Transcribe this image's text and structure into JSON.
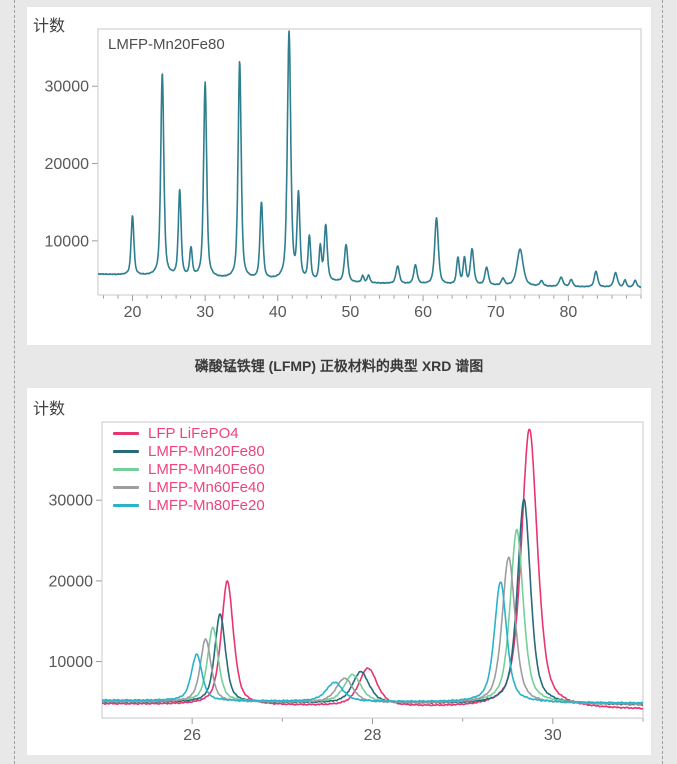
{
  "page": {
    "bg": "#e8e8e8",
    "panel_bg": "#ffffff",
    "marquee_color": "#9f9f9f",
    "frame_color": "#c8c8c8",
    "tick_color": "#9c9c9c",
    "tick_label_color": "#585858"
  },
  "caption": "磷酸锰铁锂 (LFMP) 正极材料的典型 XRD 谱图",
  "chart_data": [
    {
      "id": "full-pattern",
      "type": "line",
      "ylabel": "计数",
      "annotation": "LMFP-Mn20Fe80",
      "xlim": [
        15.25,
        90
      ],
      "ylim": [
        3000,
        37400
      ],
      "xticks_major": [
        20,
        30,
        40,
        50,
        60,
        70,
        80
      ],
      "xtick_minor_step": 2,
      "yticks": [
        10000,
        20000,
        30000
      ],
      "noise": 55,
      "series": [
        {
          "name": "LMFP-Mn20Fe80",
          "color": "#2f7e90",
          "baseline": [
            [
              15,
              5700
            ],
            [
              30,
              5150
            ],
            [
              45,
              4700
            ],
            [
              60,
              4350
            ],
            [
              75,
              4100
            ],
            [
              90,
              3950
            ]
          ],
          "peaks": [
            [
              20.0,
              13200,
              0.45
            ],
            [
              24.1,
              31600,
              0.5
            ],
            [
              26.5,
              16300,
              0.45
            ],
            [
              28.05,
              8800,
              0.42
            ],
            [
              30.0,
              30400,
              0.5
            ],
            [
              34.75,
              33100,
              0.5
            ],
            [
              37.75,
              14800,
              0.48
            ],
            [
              41.55,
              36900,
              0.55
            ],
            [
              42.85,
              15600,
              0.45
            ],
            [
              44.35,
              10300,
              0.42
            ],
            [
              45.85,
              9000,
              0.4
            ],
            [
              46.6,
              11800,
              0.5
            ],
            [
              49.4,
              9400,
              0.55
            ],
            [
              51.7,
              5400,
              0.4
            ],
            [
              52.5,
              5500,
              0.4
            ],
            [
              56.5,
              6700,
              0.55
            ],
            [
              58.95,
              6800,
              0.55
            ],
            [
              61.85,
              12900,
              0.6
            ],
            [
              64.8,
              7700,
              0.45
            ],
            [
              65.7,
              7600,
              0.45
            ],
            [
              66.75,
              8800,
              0.55
            ],
            [
              68.75,
              6500,
              0.55
            ],
            [
              71.0,
              5050,
              0.5
            ],
            [
              73.35,
              8900,
              1.0
            ],
            [
              76.3,
              4750,
              0.55
            ],
            [
              79.0,
              5250,
              0.6
            ],
            [
              80.4,
              4950,
              0.5
            ],
            [
              83.8,
              6050,
              0.55
            ],
            [
              86.5,
              5850,
              0.6
            ],
            [
              87.8,
              4900,
              0.4
            ],
            [
              89.2,
              4850,
              0.5
            ]
          ]
        }
      ]
    },
    {
      "id": "zoom-comparison",
      "type": "line",
      "ylabel": "计数",
      "xlim": [
        25,
        31
      ],
      "ylim": [
        3000,
        39700
      ],
      "xticks_major": [
        26,
        28,
        30
      ],
      "xticks_minor": [
        27,
        29,
        31
      ],
      "yticks": [
        10000,
        20000,
        30000
      ],
      "noise": 85,
      "legend_text_color": "#f0437e",
      "series": [
        {
          "name": "LFP LiFePO4",
          "color": "#e8356f",
          "baseline": [
            [
              25,
              4750
            ],
            [
              31,
              4050
            ]
          ],
          "peaks": [
            [
              26.39,
              19900,
              0.16
            ],
            [
              27.95,
              9100,
              0.24
            ],
            [
              29.74,
              38800,
              0.21
            ]
          ]
        },
        {
          "name": "LMFP-Mn20Fe80",
          "color": "#266b7c",
          "baseline": [
            [
              25,
              5000
            ],
            [
              31,
              4600
            ]
          ],
          "peaks": [
            [
              26.31,
              15900,
              0.14
            ],
            [
              27.87,
              8700,
              0.22
            ],
            [
              29.68,
              30100,
              0.17
            ]
          ]
        },
        {
          "name": "LMFP-Mn40Fe60",
          "color": "#74cf9b",
          "baseline": [
            [
              25,
              5100
            ],
            [
              31,
              4750
            ]
          ],
          "peaks": [
            [
              26.23,
              14200,
              0.14
            ],
            [
              27.78,
              8350,
              0.22
            ],
            [
              29.6,
              26300,
              0.17
            ]
          ]
        },
        {
          "name": "LMFP-Mn60Fe40",
          "color": "#9d9d9d",
          "baseline": [
            [
              25,
              5050
            ],
            [
              31,
              4700
            ]
          ],
          "peaks": [
            [
              26.15,
              12800,
              0.14
            ],
            [
              27.69,
              7900,
              0.22
            ],
            [
              29.51,
              22900,
              0.17
            ]
          ]
        },
        {
          "name": "LMFP-Mn80Fe20",
          "color": "#29b3ca",
          "baseline": [
            [
              25,
              5200
            ],
            [
              31,
              4850
            ]
          ],
          "peaks": [
            [
              26.05,
              10900,
              0.14
            ],
            [
              27.58,
              7400,
              0.22
            ],
            [
              29.42,
              19900,
              0.16
            ]
          ]
        }
      ]
    }
  ]
}
